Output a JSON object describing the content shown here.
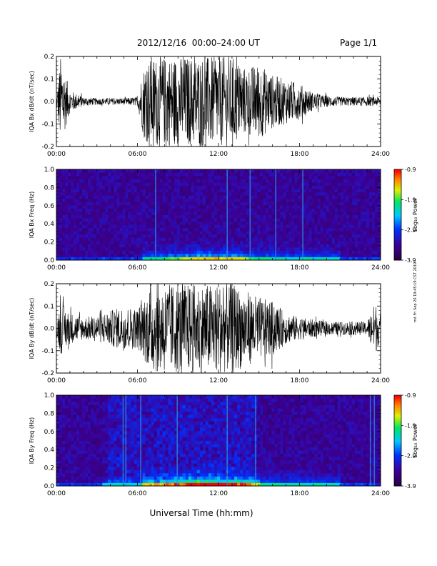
{
  "header": {
    "title": "2012/12/16  00:00–24:00 UT",
    "page": "Page 1/1"
  },
  "xlabel": "Universal Time (hh:mm)",
  "side_note": "mit Fri Sep 20 19:45:19 CST 2019",
  "colorbar": {
    "label": "Log₁₀ Power",
    "ticks": [
      "-0.9",
      "-1.9",
      "-2.9",
      "-3.9"
    ]
  },
  "chart_data": [
    {
      "type": "line",
      "panel": "Bx time series",
      "ylabel": "IQA Bx dB/dt (nT/sec)",
      "xlim": [
        0,
        24
      ],
      "ylim": [
        -0.2,
        0.2
      ],
      "xticks": [
        "00:00",
        "06:00",
        "12:00",
        "18:00",
        "24:00"
      ],
      "yticks": [
        "0.2",
        "0.1",
        "0.0",
        "-0.1",
        "-0.2"
      ],
      "x": [
        0,
        0.3,
        1,
        2,
        3,
        4,
        5,
        6,
        6.5,
        7,
        8,
        9,
        10,
        11,
        12,
        13,
        14,
        15,
        16,
        17,
        18,
        19,
        20,
        21,
        22,
        23,
        24
      ],
      "y_amplitude": [
        0.01,
        0.2,
        0.05,
        0.02,
        0.015,
        0.015,
        0.015,
        0.02,
        0.17,
        0.2,
        0.2,
        0.2,
        0.2,
        0.2,
        0.2,
        0.2,
        0.15,
        0.17,
        0.12,
        0.1,
        0.08,
        0.04,
        0.025,
        0.02,
        0.02,
        0.02,
        0.02
      ]
    },
    {
      "type": "heatmap",
      "panel": "Bx spectrogram",
      "ylabel": "IQA Bx Freq (Hz)",
      "xlim": [
        0,
        24
      ],
      "ylim": [
        0,
        1
      ],
      "xticks": [
        "00:00",
        "06:00",
        "12:00",
        "18:00",
        "24:00"
      ],
      "yticks": [
        "1.0",
        "0.8",
        "0.6",
        "0.4",
        "0.2",
        "0.0"
      ],
      "zlim": [
        -3.9,
        -0.9
      ]
    },
    {
      "type": "line",
      "panel": "By time series",
      "ylabel": "IQA By dB/dt (nT/sec)",
      "xlim": [
        0,
        24
      ],
      "ylim": [
        -0.2,
        0.2
      ],
      "xticks": [
        "00:00",
        "06:00",
        "12:00",
        "18:00",
        "24:00"
      ],
      "yticks": [
        "0.2",
        "0.1",
        "0.0",
        "-0.1",
        "-0.2"
      ],
      "x": [
        0,
        0.3,
        1,
        2,
        3,
        4,
        5,
        6,
        6.5,
        7,
        8,
        9,
        10,
        11,
        12,
        13,
        14,
        15,
        16,
        17,
        18,
        19,
        20,
        21,
        22,
        23,
        23.6,
        24
      ],
      "y_amplitude": [
        0.03,
        0.12,
        0.07,
        0.05,
        0.06,
        0.08,
        0.1,
        0.09,
        0.14,
        0.2,
        0.2,
        0.2,
        0.2,
        0.2,
        0.2,
        0.2,
        0.17,
        0.14,
        0.12,
        0.07,
        0.05,
        0.04,
        0.03,
        0.03,
        0.03,
        0.03,
        0.12,
        0.05
      ]
    },
    {
      "type": "heatmap",
      "panel": "By spectrogram",
      "ylabel": "IQA By Freq (Hz)",
      "xlim": [
        0,
        24
      ],
      "ylim": [
        0,
        1
      ],
      "xticks": [
        "00:00",
        "06:00",
        "12:00",
        "18:00",
        "24:00"
      ],
      "yticks": [
        "1.0",
        "0.8",
        "0.6",
        "0.4",
        "0.2",
        "0.0"
      ],
      "zlim": [
        -3.9,
        -0.9
      ]
    }
  ]
}
